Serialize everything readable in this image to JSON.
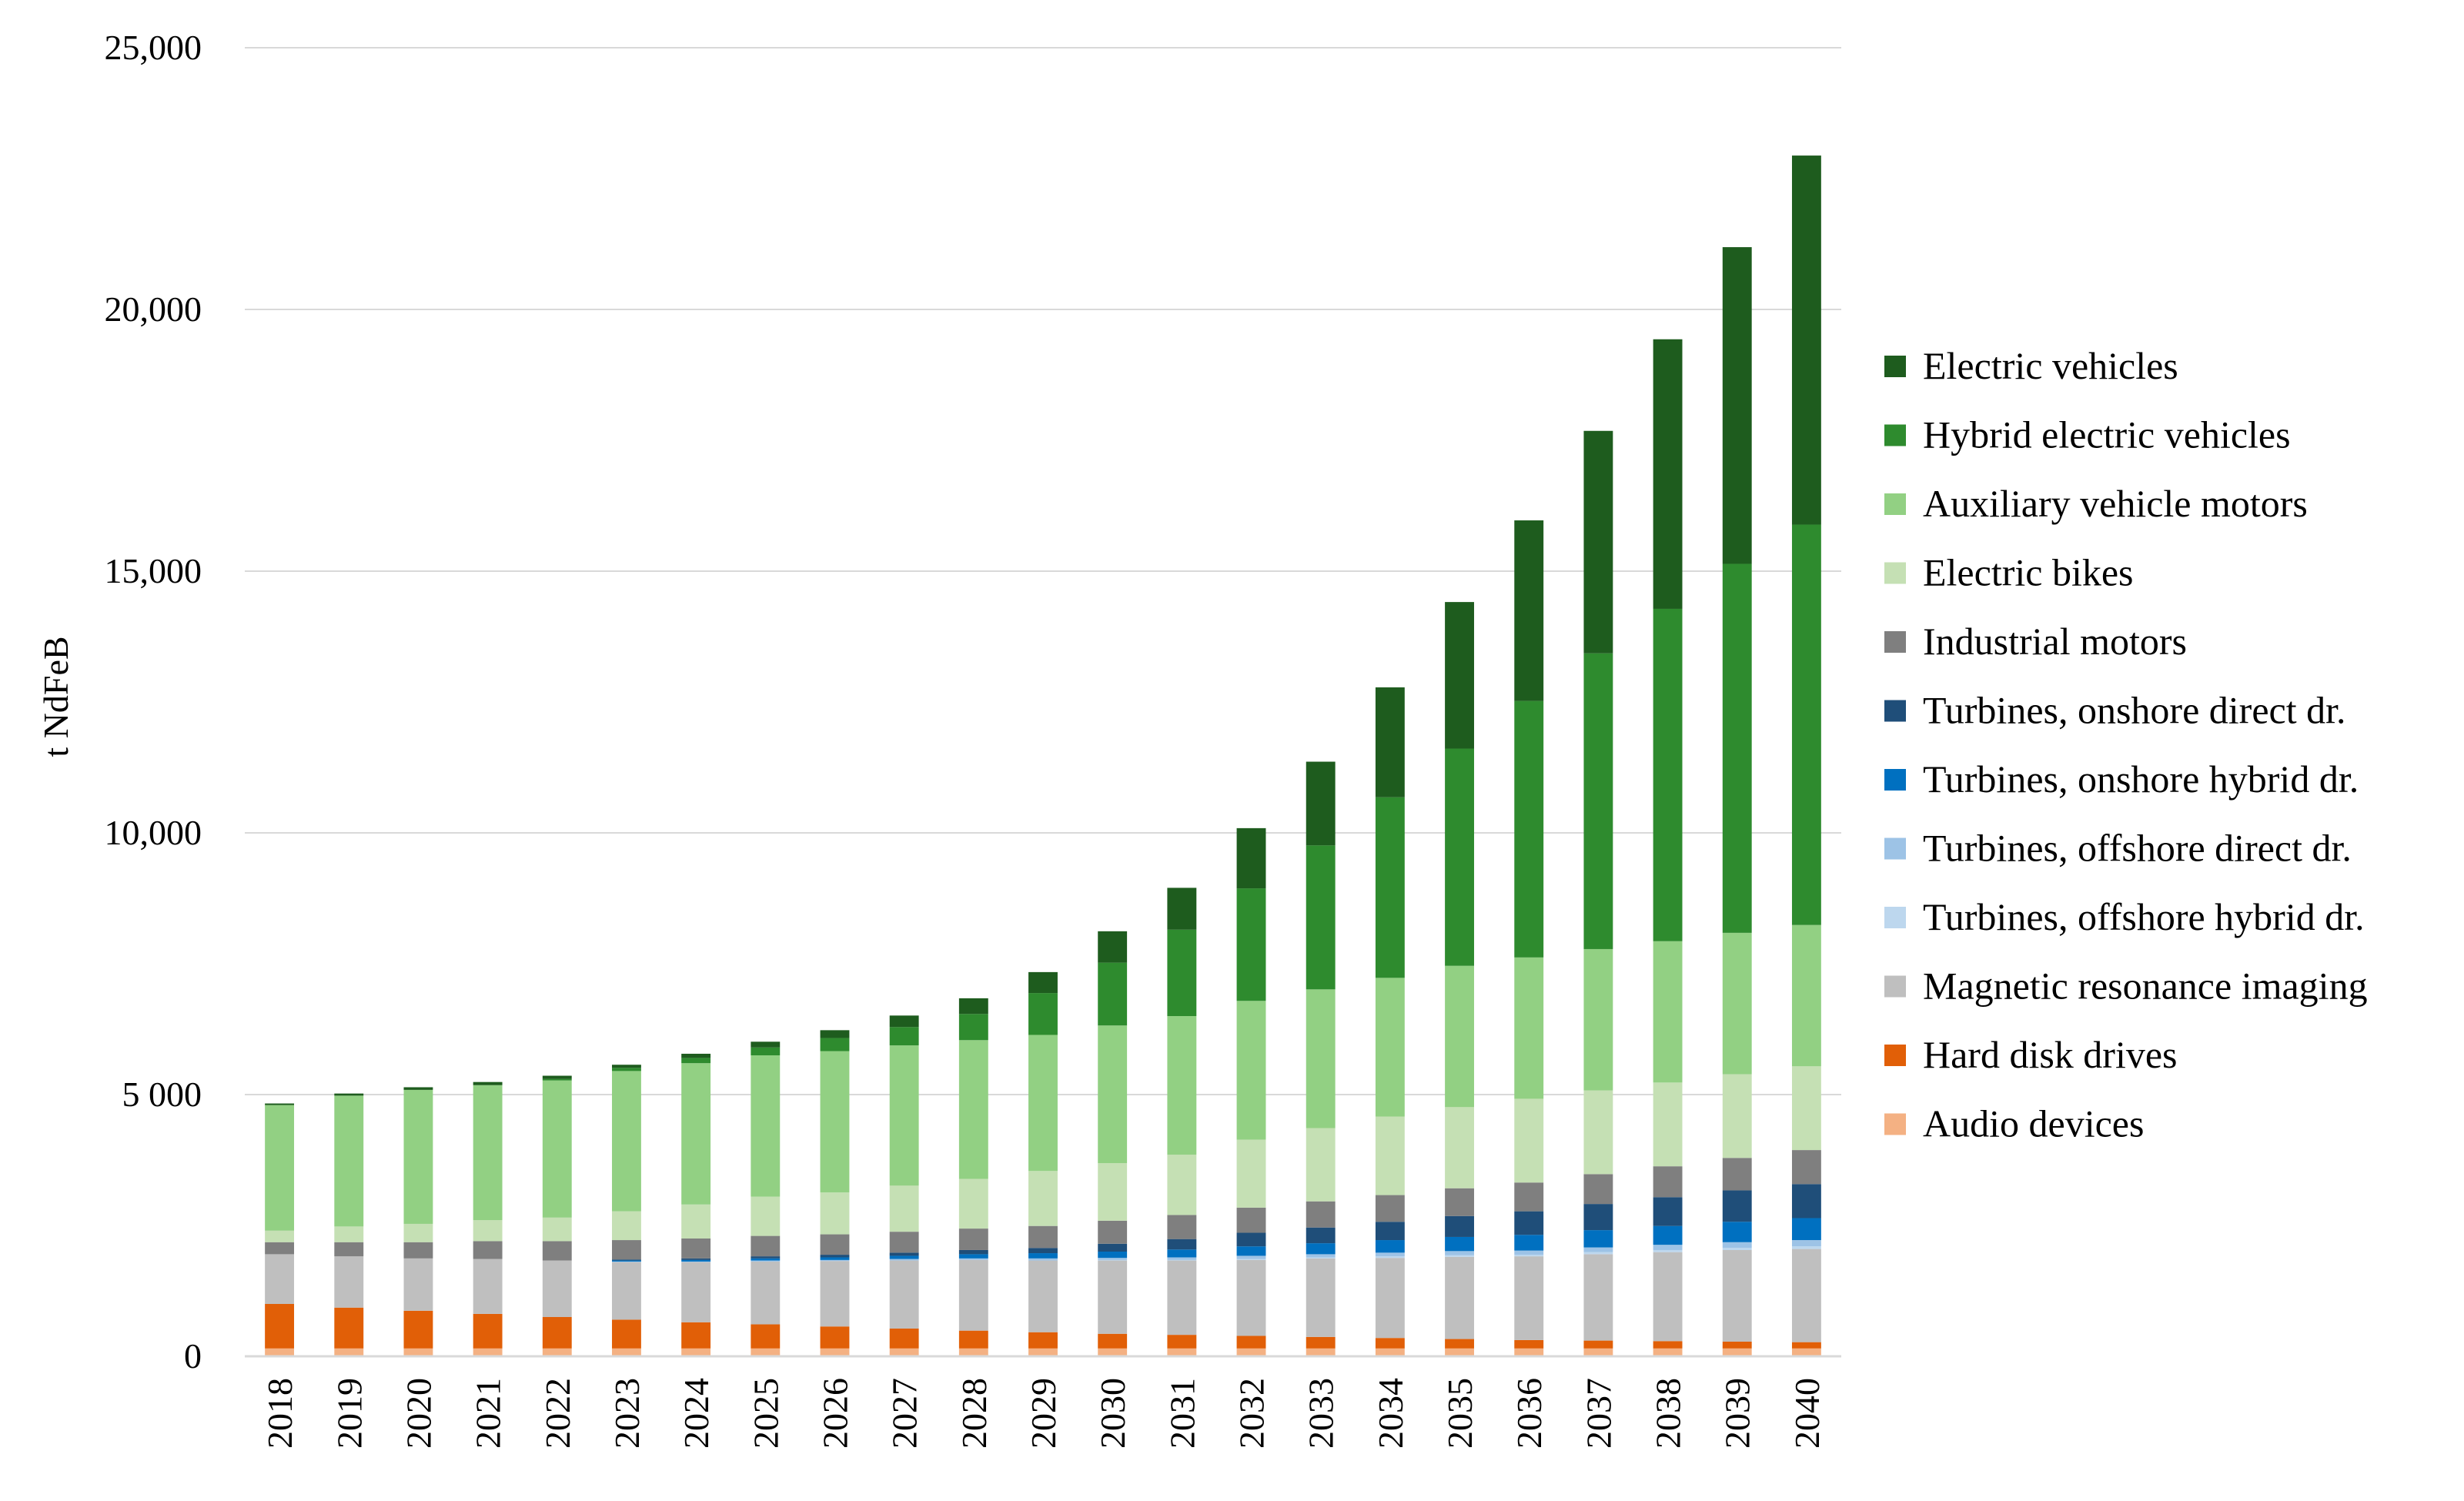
{
  "chart_data": {
    "type": "bar",
    "stacked": true,
    "title": "",
    "xlabel": "",
    "ylabel": "t NdFeB",
    "ylim": [
      0,
      25000
    ],
    "yticks": [
      0,
      5000,
      10000,
      15000,
      20000,
      25000
    ],
    "ytick_labels": [
      "0",
      "5 000",
      "10,000",
      "15,000",
      "20,000",
      "25,000"
    ],
    "grid": true,
    "legend_position": "right",
    "categories": [
      "2018",
      "2019",
      "2020",
      "2021",
      "2022",
      "2023",
      "2024",
      "2025",
      "2026",
      "2027",
      "2028",
      "2029",
      "2030",
      "2031",
      "2032",
      "2033",
      "2034",
      "2035",
      "2036",
      "2037",
      "2038",
      "2039",
      "2040"
    ],
    "series": [
      {
        "name": "Audio devices",
        "color": "#f4b183",
        "values": [
          150,
          150,
          150,
          150,
          150,
          150,
          150,
          150,
          150,
          150,
          150,
          150,
          150,
          150,
          150,
          150,
          150,
          150,
          150,
          150,
          150,
          150,
          150
        ]
      },
      {
        "name": "Hard disk drives",
        "color": "#e15f07",
        "values": [
          850,
          780,
          720,
          660,
          600,
          550,
          500,
          460,
          420,
          380,
          340,
          310,
          280,
          260,
          240,
          220,
          200,
          180,
          160,
          150,
          140,
          130,
          120
        ]
      },
      {
        "name": "Magnetic resonance imaging",
        "color": "#bfbfbf",
        "values": [
          950,
          980,
          1000,
          1050,
          1080,
          1100,
          1150,
          1200,
          1250,
          1300,
          1350,
          1370,
          1400,
          1420,
          1450,
          1500,
          1530,
          1570,
          1600,
          1650,
          1700,
          1750,
          1780
        ]
      },
      {
        "name": "Turbines, offshore hybrid dr.",
        "color": "#bdd7ee",
        "values": [
          0,
          0,
          0,
          0,
          0,
          0,
          0,
          0,
          0,
          0,
          0,
          0,
          10,
          10,
          20,
          20,
          30,
          30,
          30,
          40,
          40,
          40,
          50
        ]
      },
      {
        "name": "Turbines, offshore direct dr.",
        "color": "#9dc3e6",
        "values": [
          0,
          0,
          0,
          0,
          0,
          10,
          10,
          20,
          20,
          30,
          30,
          40,
          40,
          50,
          60,
          60,
          70,
          80,
          80,
          90,
          100,
          110,
          120
        ]
      },
      {
        "name": "Turbines, onshore hybrid dr.",
        "color": "#0070c0",
        "values": [
          0,
          0,
          0,
          0,
          0,
          20,
          30,
          40,
          50,
          60,
          80,
          100,
          120,
          150,
          180,
          210,
          240,
          270,
          300,
          330,
          360,
          390,
          420
        ]
      },
      {
        "name": "Turbines, onshore direct dr.",
        "color": "#1f4e79",
        "values": [
          0,
          0,
          0,
          0,
          0,
          20,
          30,
          40,
          50,
          60,
          80,
          100,
          150,
          200,
          260,
          300,
          350,
          400,
          450,
          500,
          550,
          600,
          650
        ]
      },
      {
        "name": "Industrial motors",
        "color": "#7f7f7f",
        "values": [
          230,
          270,
          310,
          340,
          370,
          370,
          380,
          390,
          390,
          400,
          410,
          420,
          440,
          460,
          480,
          500,
          510,
          530,
          550,
          570,
          590,
          620,
          650
        ]
      },
      {
        "name": "Electric bikes",
        "color": "#c5e0b4",
        "values": [
          220,
          300,
          350,
          400,
          450,
          550,
          650,
          750,
          800,
          880,
          950,
          1050,
          1100,
          1150,
          1300,
          1400,
          1500,
          1550,
          1600,
          1600,
          1600,
          1600,
          1600
        ]
      },
      {
        "name": "Auxiliary vehicle motors",
        "color": "#92d083",
        "values": [
          2400,
          2500,
          2560,
          2580,
          2620,
          2680,
          2700,
          2700,
          2700,
          2680,
          2650,
          2600,
          2630,
          2650,
          2650,
          2650,
          2650,
          2700,
          2700,
          2700,
          2700,
          2700,
          2700
        ]
      },
      {
        "name": "Hybrid electric vehicles",
        "color": "#2e8b2e",
        "values": [
          0,
          0,
          0,
          0,
          30,
          60,
          100,
          150,
          250,
          350,
          500,
          800,
          1200,
          1650,
          2150,
          2750,
          3450,
          4150,
          4900,
          5650,
          6350,
          7050,
          7650
        ]
      },
      {
        "name": "Electric vehicles",
        "color": "#1e5c1e",
        "values": [
          30,
          40,
          50,
          60,
          60,
          60,
          80,
          110,
          150,
          220,
          300,
          400,
          600,
          800,
          1150,
          1600,
          2100,
          2800,
          3450,
          4250,
          5150,
          6050,
          7050
        ]
      }
    ]
  }
}
